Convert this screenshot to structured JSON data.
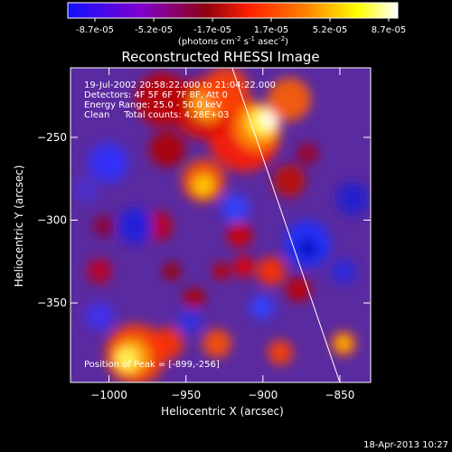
{
  "colorbar": {
    "ticks": [
      "-8.7e-05",
      "-5.2e-05",
      "-1.7e-05",
      "1.7e-05",
      "5.2e-05",
      "8.7e-05"
    ],
    "units_prefix": "(photons cm",
    "units_sup1": "-2",
    "units_mid": " s",
    "units_sup2": "-1",
    "units_mid2": " asec",
    "units_sup3": "-2",
    "units_suffix": ")",
    "colors": [
      "#1010ff",
      "#8000d0",
      "#a00000",
      "#ff2000",
      "#ff8000",
      "#ffff00",
      "#ffffff"
    ]
  },
  "chart_data": {
    "type": "heatmap",
    "title": "Reconstructed RHESSI Image",
    "xlabel": "Heliocentric X (arcsec)",
    "ylabel": "Heliocentric Y (arcsec)",
    "xlim": [
      -1025,
      -830
    ],
    "ylim": [
      -398,
      -208
    ],
    "x_ticks": [
      -1000,
      -950,
      -900,
      -850
    ],
    "y_ticks": [
      -250,
      -300,
      -350
    ],
    "x_tick_labels": [
      "−1000",
      "−950",
      "−900",
      "−850"
    ],
    "y_tick_labels": [
      "−250",
      "−300",
      "−350"
    ],
    "annotations": {
      "time": "19-Jul-2002 20:58:22.000 to 21:04:22.000",
      "detectors": "Detectors: 4F 5F 6F 7F 8F, Att 0",
      "energy": "Energy Range: 25.0 - 50.0 keV",
      "clean": "Clean     Total counts: 4.28E+03"
    },
    "peak_label": "Position of Peak = [-899,-256]",
    "peak": [
      -899,
      -256
    ],
    "limb_line": [
      [
        -920,
        -208
      ],
      [
        -850,
        -398
      ]
    ]
  },
  "footer": {
    "date": "18-Apr-2013 10:27"
  }
}
